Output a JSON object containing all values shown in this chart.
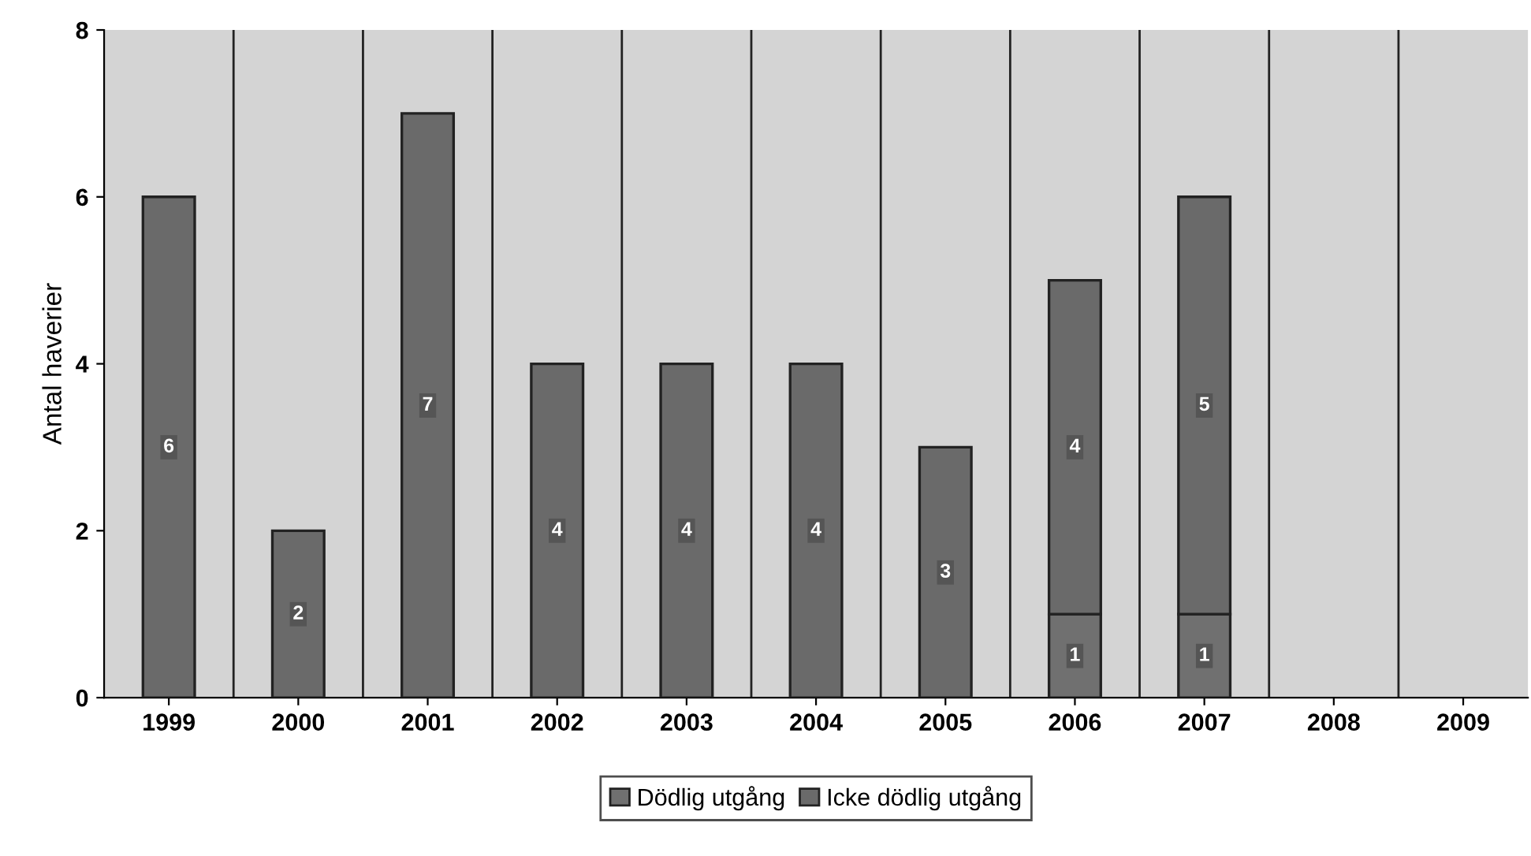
{
  "chart_data": {
    "type": "bar",
    "ylabel": "Antal haverier",
    "categories": [
      "1999",
      "2000",
      "2001",
      "2002",
      "2003",
      "2004",
      "2005",
      "2006",
      "2007",
      "2008",
      "2009"
    ],
    "stacked": true,
    "series": [
      {
        "name": "Dödlig utgång",
        "color": "#707070",
        "values": [
          0,
          0,
          0,
          0,
          0,
          0,
          0,
          1,
          1,
          0,
          0
        ],
        "value_labels": [
          null,
          null,
          null,
          null,
          null,
          null,
          null,
          "1",
          "1",
          null,
          null
        ]
      },
      {
        "name": "Icke dödlig utgång",
        "color": "#6a6a6a",
        "values": [
          6,
          2,
          7,
          4,
          4,
          4,
          3,
          4,
          5,
          0,
          0
        ],
        "value_labels": [
          "6",
          "2",
          "7",
          "4",
          "4",
          "4",
          "3",
          "4",
          "5",
          null,
          null
        ]
      }
    ],
    "ylim": [
      0,
      8
    ],
    "yticks": [
      0,
      2,
      4,
      6,
      8
    ],
    "grid": "x",
    "legend": "bottom"
  }
}
